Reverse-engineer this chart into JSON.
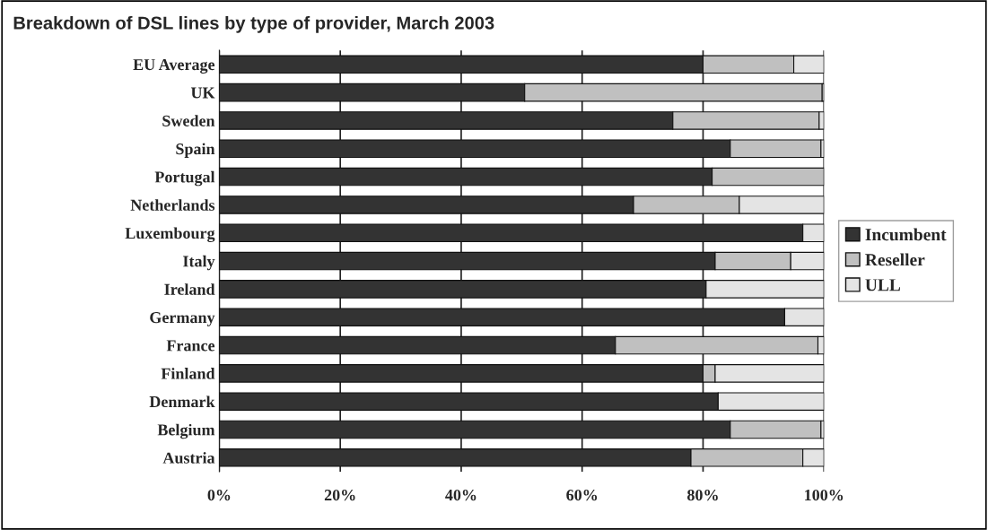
{
  "chart_data": {
    "type": "bar",
    "orientation": "horizontal",
    "stacked": true,
    "title": "Breakdown of DSL lines by type of provider, March 2003",
    "categories": [
      "EU Average",
      "UK",
      "Sweden",
      "Spain",
      "Portugal",
      "Netherlands",
      "Luxembourg",
      "Italy",
      "Ireland",
      "Germany",
      "France",
      "Finland",
      "Denmark",
      "Belgium",
      "Austria"
    ],
    "series": [
      {
        "name": "Incumbent",
        "color": "#333333",
        "values": [
          80,
          50.5,
          75,
          84.5,
          81.5,
          68.5,
          96.5,
          82,
          80.5,
          93.5,
          65.5,
          80,
          82.5,
          84.5,
          78
        ]
      },
      {
        "name": "Reseller",
        "color": "#c0c0c0",
        "values": [
          15,
          49.2,
          24.2,
          15,
          18.5,
          17.5,
          null,
          12.5,
          null,
          null,
          33.5,
          2,
          null,
          15,
          18.5
        ]
      },
      {
        "name": "ULL",
        "color": "#e4e4e4",
        "values": [
          5,
          0.3,
          0.8,
          0.5,
          null,
          14,
          3.5,
          5.5,
          19.5,
          6.5,
          1,
          18,
          17.5,
          0.5,
          3.5
        ]
      }
    ],
    "xlim": [
      0,
      100
    ],
    "xticks": [
      {
        "value": 0,
        "label": "0%"
      },
      {
        "value": 20,
        "label": "20%"
      },
      {
        "value": 40,
        "label": "40%"
      },
      {
        "value": 60,
        "label": "60%"
      },
      {
        "value": 80,
        "label": "80%"
      },
      {
        "value": 100,
        "label": "100%"
      }
    ],
    "grid": "x",
    "legend": "right"
  }
}
